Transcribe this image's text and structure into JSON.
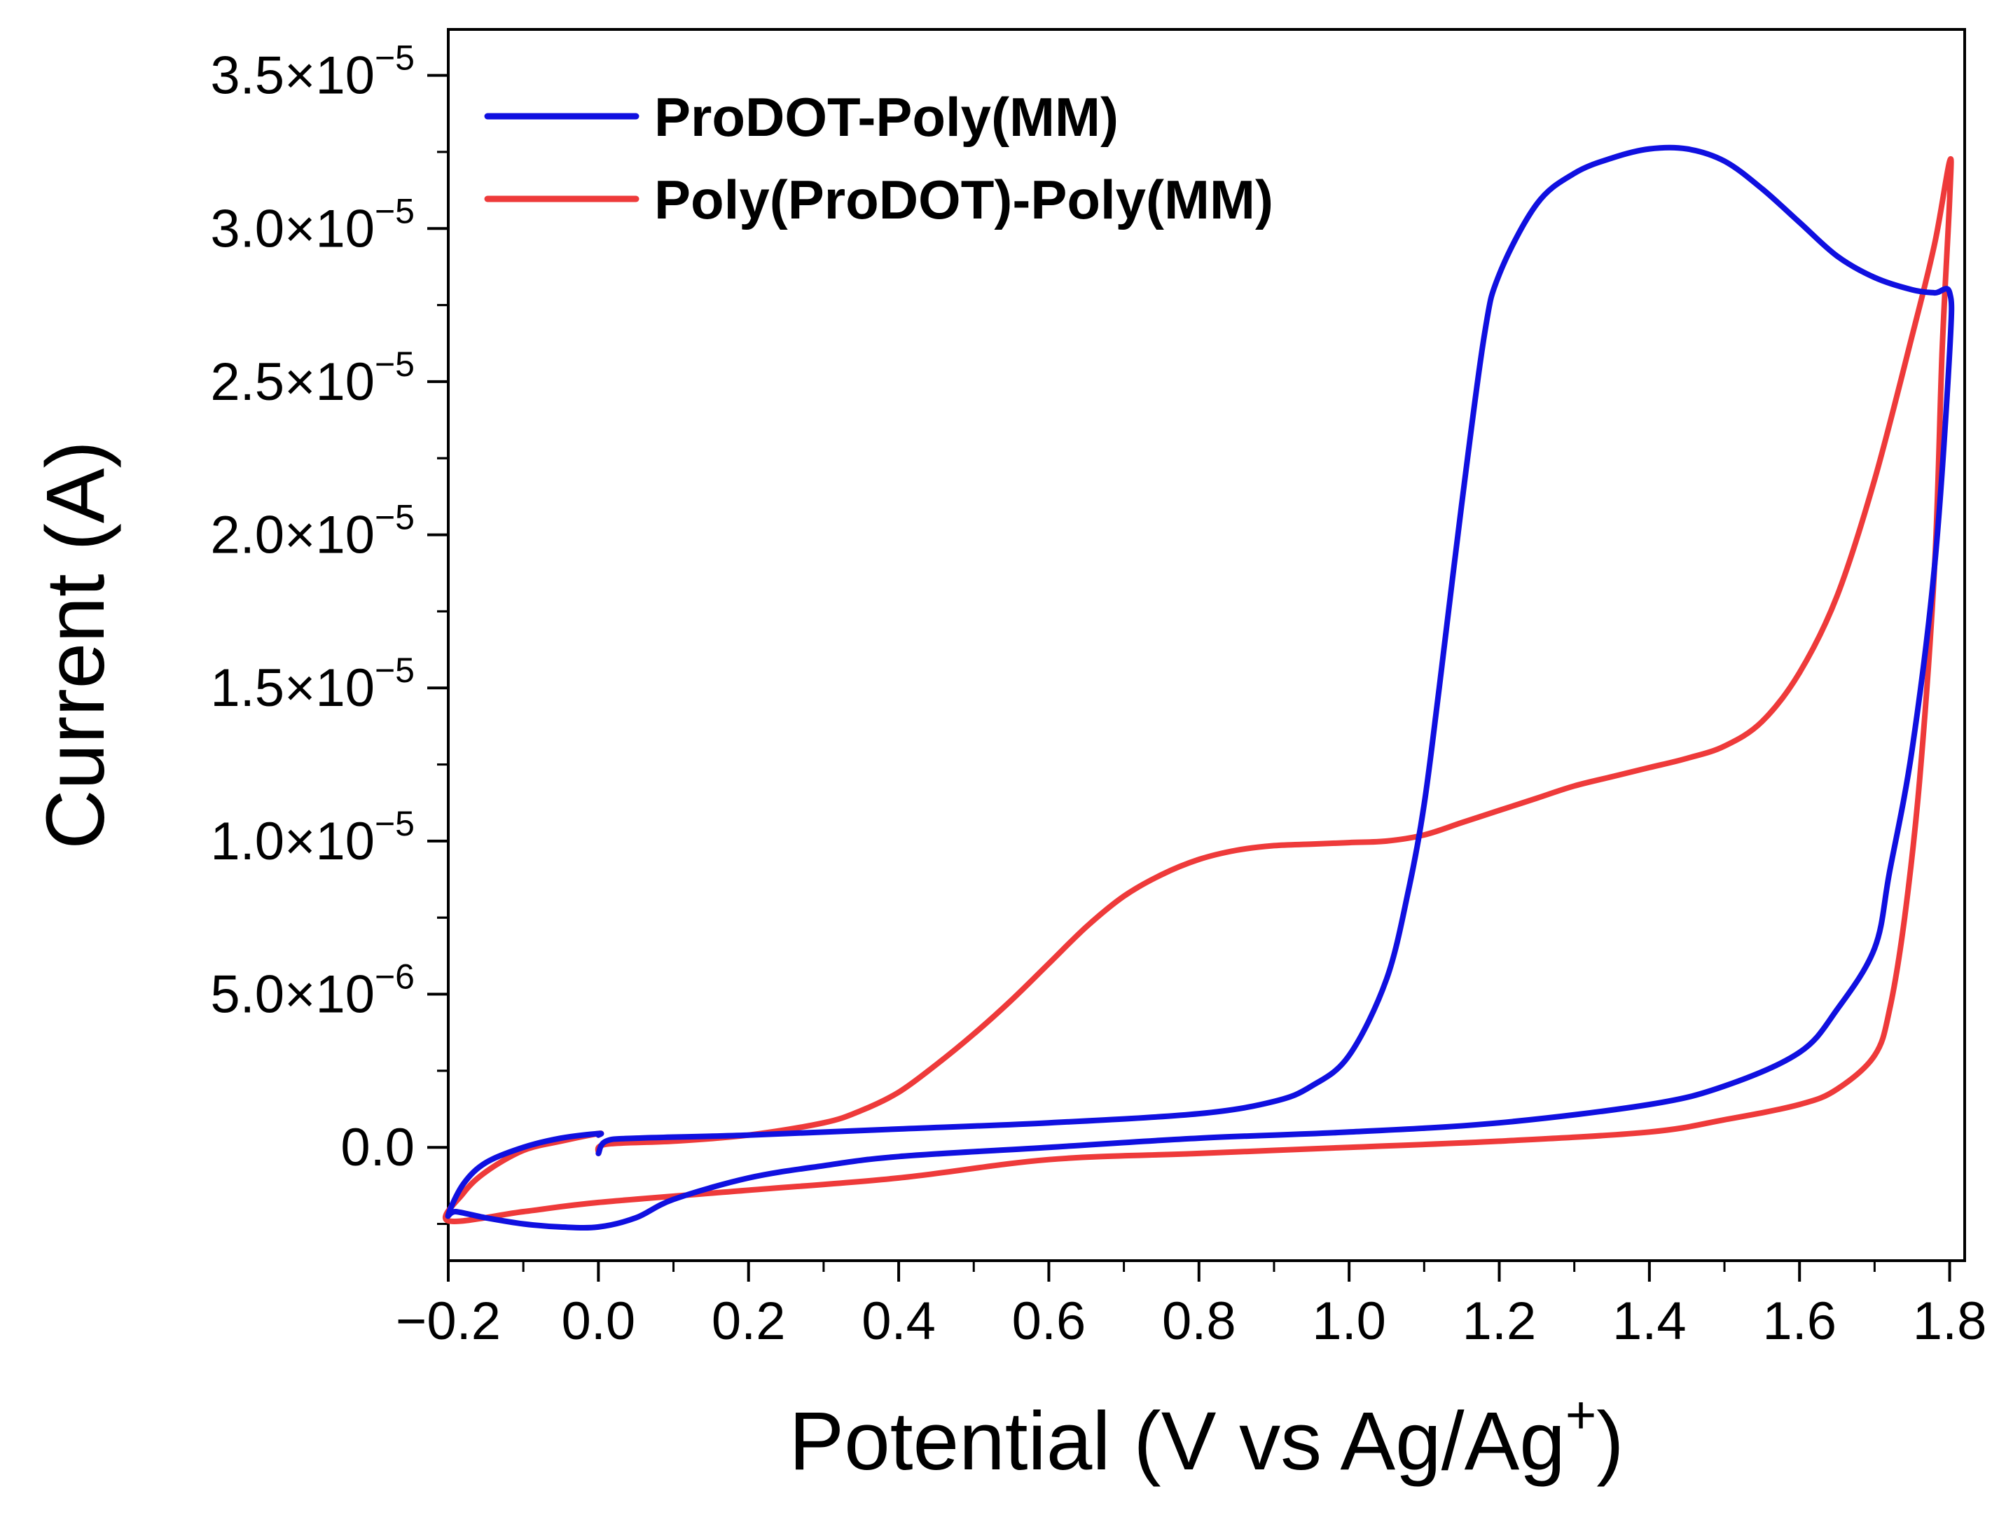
{
  "chart_data": {
    "type": "line",
    "title": "",
    "xlabel": "Potential (V vs Ag/Ag",
    "xlabel_sup": "+",
    "xlabel_end": ")",
    "ylabel": "Current (A)",
    "xlim": [
      -0.2,
      1.82
    ],
    "ylim": [
      -3.7e-06,
      3.65e-05
    ],
    "x_ticks": [
      -0.2,
      0.0,
      0.2,
      0.4,
      0.6,
      0.8,
      1.0,
      1.2,
      1.4,
      1.6,
      1.8
    ],
    "x_tick_labels": [
      "−0.2",
      "0.0",
      "0.2",
      "0.4",
      "0.6",
      "0.8",
      "1.0",
      "1.2",
      "1.4",
      "1.6",
      "1.8"
    ],
    "y_ticks": [
      0,
      5e-06,
      1e-05,
      1.5e-05,
      2e-05,
      2.5e-05,
      3e-05,
      3.5e-05
    ],
    "y_tick_labels": [
      {
        "mant": "0.0",
        "exp": ""
      },
      {
        "mant": "5.0×10",
        "exp": "−6"
      },
      {
        "mant": "1.0×10",
        "exp": "−5"
      },
      {
        "mant": "1.5×10",
        "exp": "−5"
      },
      {
        "mant": "2.0×10",
        "exp": "−5"
      },
      {
        "mant": "2.5×10",
        "exp": "−5"
      },
      {
        "mant": "3.0×10",
        "exp": "−5"
      },
      {
        "mant": "3.5×10",
        "exp": "−5"
      }
    ],
    "grid": false,
    "legend_position": "top-left",
    "series": [
      {
        "name": "ProDOT-Poly(MM)",
        "color": "#1010e0",
        "x": [
          0.0,
          0.01,
          0.05,
          0.2,
          0.4,
          0.6,
          0.8,
          0.9,
          0.95,
          1.0,
          1.05,
          1.08,
          1.1,
          1.12,
          1.15,
          1.18,
          1.2,
          1.25,
          1.3,
          1.35,
          1.4,
          1.45,
          1.5,
          1.55,
          1.6,
          1.65,
          1.7,
          1.75,
          1.78,
          1.8,
          1.8,
          1.78,
          1.75,
          1.72,
          1.7,
          1.65,
          1.6,
          1.5,
          1.4,
          1.2,
          1.0,
          0.8,
          0.6,
          0.4,
          0.3,
          0.2,
          0.1,
          0.05,
          0.0,
          -0.05,
          -0.1,
          -0.15,
          -0.19,
          -0.2,
          -0.18,
          -0.15,
          -0.1,
          -0.05,
          0.0,
          0.0
        ],
        "y": [
          -2e-07,
          2e-07,
          3e-07,
          4e-07,
          6e-07,
          8e-07,
          1.1e-06,
          1.5e-06,
          2e-06,
          3e-06,
          5.5e-06,
          8.5e-06,
          1.12e-05,
          1.5e-05,
          2.1e-05,
          2.65e-05,
          2.85e-05,
          3.08e-05,
          3.18e-05,
          3.23e-05,
          3.26e-05,
          3.26e-05,
          3.22e-05,
          3.13e-05,
          3.02e-05,
          2.91e-05,
          2.84e-05,
          2.8e-05,
          2.79e-05,
          2.79e-05,
          2.6e-05,
          1.9e-05,
          1.3e-05,
          9e-06,
          6.5e-06,
          4.5e-06,
          3.1e-06,
          2e-06,
          1.4e-06,
          8e-07,
          5e-07,
          3e-07,
          0,
          -3e-07,
          -6e-07,
          -1e-06,
          -1.7e-06,
          -2.3e-06,
          -2.6e-06,
          -2.6e-06,
          -2.5e-06,
          -2.3e-06,
          -2.1e-06,
          -2.2e-06,
          -1.2e-06,
          -5e-07,
          0,
          3e-07,
          4.5e-07,
          4e-07
        ]
      },
      {
        "name": "Poly(ProDOT)-Poly(MM)",
        "color": "#ee3a3a",
        "x": [
          0.0,
          0.01,
          0.1,
          0.2,
          0.3,
          0.35,
          0.4,
          0.45,
          0.5,
          0.55,
          0.6,
          0.65,
          0.7,
          0.75,
          0.8,
          0.85,
          0.9,
          0.95,
          1.0,
          1.05,
          1.1,
          1.15,
          1.2,
          1.25,
          1.3,
          1.35,
          1.4,
          1.45,
          1.5,
          1.55,
          1.6,
          1.65,
          1.7,
          1.75,
          1.78,
          1.8,
          1.8,
          1.79,
          1.78,
          1.76,
          1.74,
          1.72,
          1.7,
          1.65,
          1.6,
          1.5,
          1.4,
          1.2,
          1.0,
          0.8,
          0.6,
          0.4,
          0.2,
          0.0,
          -0.1,
          -0.2,
          -0.18,
          -0.15,
          -0.1,
          -0.05,
          0.0,
          0.0
        ],
        "y": [
          -2e-07,
          1e-07,
          2e-07,
          4e-07,
          8e-07,
          1.2e-06,
          1.8e-06,
          2.7e-06,
          3.7e-06,
          4.8e-06,
          6e-06,
          7.2e-06,
          8.2e-06,
          8.9e-06,
          9.4e-06,
          9.7e-06,
          9.85e-06,
          9.9e-06,
          9.95e-06,
          1e-05,
          1.02e-05,
          1.06e-05,
          1.1e-05,
          1.14e-05,
          1.18e-05,
          1.21e-05,
          1.24e-05,
          1.27e-05,
          1.31e-05,
          1.39e-05,
          1.55e-05,
          1.8e-05,
          2.18e-05,
          2.65e-05,
          2.95e-05,
          3.22e-05,
          3.1e-05,
          2.6e-05,
          1.9e-05,
          1.2e-05,
          7.5e-06,
          4.5e-06,
          3e-06,
          1.9e-06,
          1.4e-06,
          9e-07,
          5e-07,
          2e-07,
          0,
          -2e-07,
          -4e-07,
          -1e-06,
          -1.4e-06,
          -1.8e-06,
          -2.1e-06,
          -2.4e-06,
          -1.5e-06,
          -8e-07,
          -1e-07,
          2e-07,
          4.5e-07,
          4e-07
        ]
      }
    ]
  }
}
